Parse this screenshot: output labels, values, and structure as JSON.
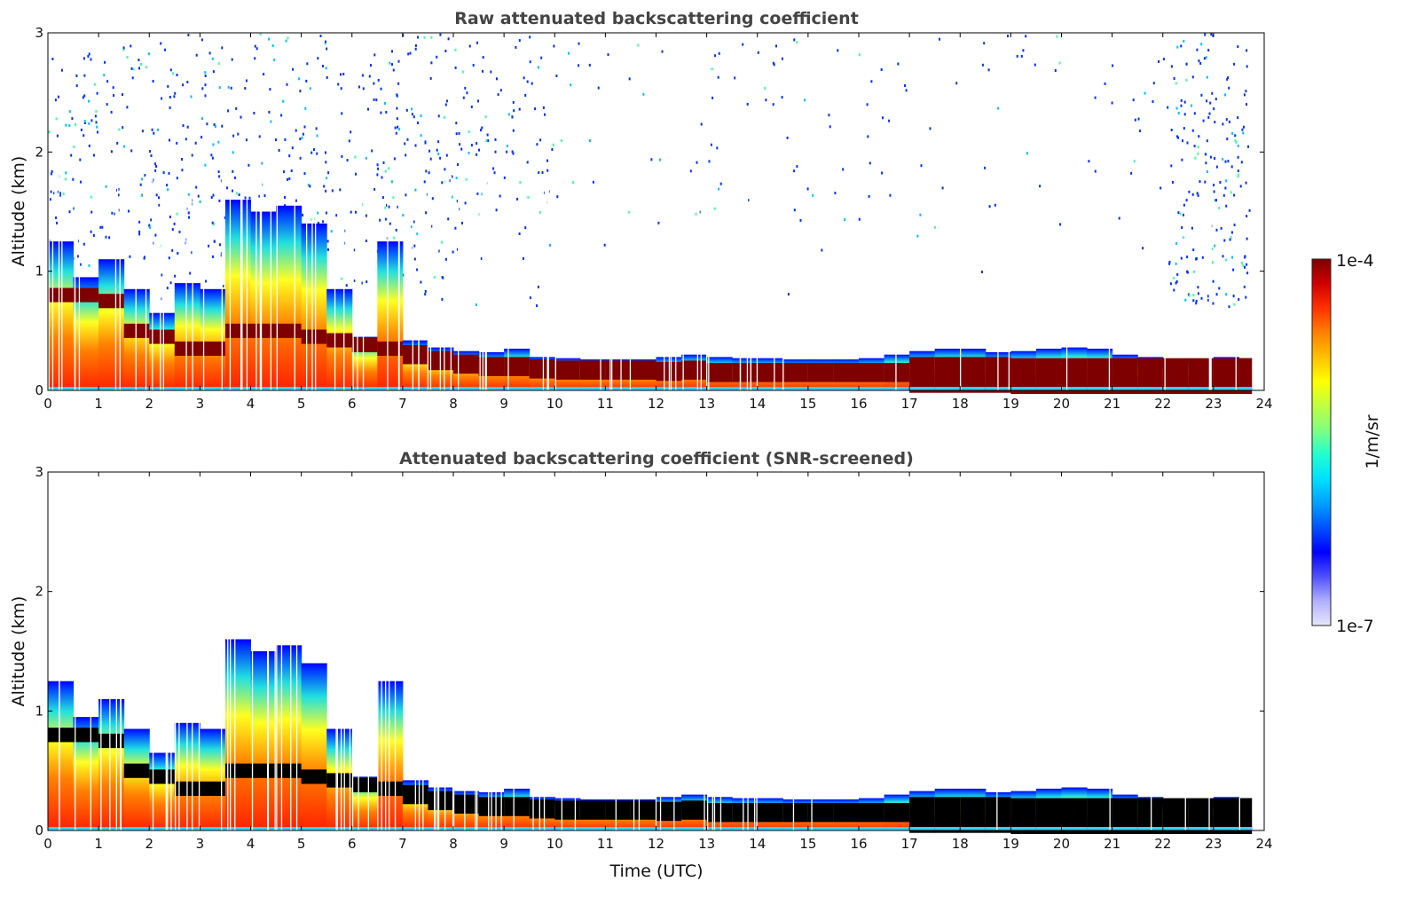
{
  "chart_data": [
    {
      "type": "heatmap",
      "title": "Raw attenuated backscattering coefficient",
      "xlabel": "",
      "ylabel": "Altitude (km)",
      "xlim": [
        0,
        24
      ],
      "ylim": [
        0,
        3
      ],
      "xticks": [
        "0",
        "1",
        "2",
        "3",
        "4",
        "5",
        "6",
        "7",
        "8",
        "9",
        "10",
        "11",
        "12",
        "13",
        "14",
        "15",
        "16",
        "17",
        "18",
        "19",
        "20",
        "21",
        "22",
        "23",
        "24"
      ],
      "yticks": [
        "0",
        "1",
        "2",
        "3"
      ],
      "noise": true,
      "dense_color": "#7f0000"
    },
    {
      "type": "heatmap",
      "title": "Attenuated backscattering coefficient (SNR-screened)",
      "xlabel": "Time (UTC)",
      "ylabel": "Altitude (km)",
      "xlim": [
        0,
        24
      ],
      "ylim": [
        0,
        3
      ],
      "xticks": [
        "0",
        "1",
        "2",
        "3",
        "4",
        "5",
        "6",
        "7",
        "8",
        "9",
        "10",
        "11",
        "12",
        "13",
        "14",
        "15",
        "16",
        "17",
        "18",
        "19",
        "20",
        "21",
        "22",
        "23",
        "24"
      ],
      "yticks": [
        "0",
        "1",
        "2",
        "3"
      ],
      "noise": false,
      "dense_color": "#000000"
    }
  ],
  "profile": {
    "time_utc": [
      0,
      0.5,
      1,
      1.5,
      2,
      2.5,
      3,
      3.5,
      4,
      4.5,
      5,
      5.5,
      6,
      6.5,
      7,
      7.5,
      8,
      8.5,
      9,
      9.5,
      10,
      10.5,
      11,
      11.5,
      12,
      12.5,
      13,
      13.5,
      14,
      14.5,
      15,
      15.5,
      16,
      16.5,
      17,
      17.5,
      18,
      18.5,
      19,
      19.5,
      20,
      20.5,
      21,
      21.5,
      22,
      22.5,
      23,
      23.5
    ],
    "layer_top_km": [
      1.25,
      0.95,
      1.1,
      0.85,
      0.65,
      0.9,
      0.85,
      1.6,
      1.5,
      1.55,
      1.4,
      0.85,
      0.45,
      1.25,
      0.42,
      0.36,
      0.33,
      0.32,
      0.35,
      0.28,
      0.27,
      0.26,
      0.26,
      0.26,
      0.28,
      0.3,
      0.28,
      0.27,
      0.27,
      0.26,
      0.26,
      0.26,
      0.27,
      0.3,
      0.33,
      0.35,
      0.35,
      0.32,
      0.33,
      0.35,
      0.36,
      0.35,
      0.3,
      0.28,
      0.22,
      0.25,
      0.28,
      0.27
    ],
    "dense_layer_km": [
      0.8,
      0.8,
      0.75,
      0.5,
      0.45,
      0.35,
      0.35,
      0.5,
      0.5,
      0.5,
      0.45,
      0.42,
      0.38,
      0.35,
      0.3,
      0.25,
      0.22,
      0.2,
      0.2,
      0.18,
      0.17,
      0.17,
      0.17,
      0.17,
      0.16,
      0.17,
      0.15,
      0.15,
      0.15,
      0.15,
      0.15,
      0.15,
      0.15,
      0.15,
      0.13,
      0.13,
      0.13,
      0.13,
      0.12,
      0.12,
      0.12,
      0.12,
      0.12,
      0.12,
      0.12,
      0.12,
      0.12,
      0.12
    ],
    "end_time_utc": 23.75
  },
  "colorbar": {
    "label": "1/m/sr",
    "max_label": "1e-4",
    "min_label": "1e-7",
    "colors": [
      "#e6e6fa",
      "#b0b0ff",
      "#5050ff",
      "#0000ff",
      "#0050ff",
      "#00a0ff",
      "#00e0ff",
      "#20ffd0",
      "#80ff80",
      "#c0ff40",
      "#ffff00",
      "#ffc000",
      "#ff8000",
      "#ff3000",
      "#d00000",
      "#7f0000"
    ]
  }
}
